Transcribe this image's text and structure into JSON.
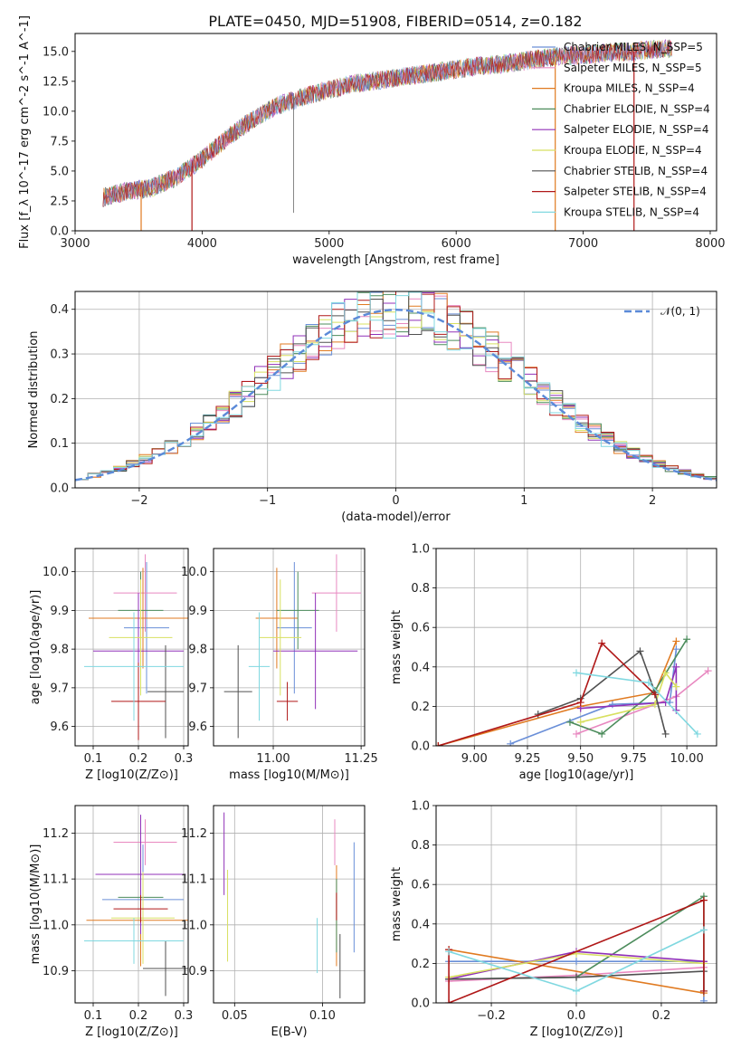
{
  "title": "PLATE=0450, MJD=51908, FIBERID=0514, z=0.182",
  "colors": [
    "#6a8fd8",
    "#e888c0",
    "#e07a20",
    "#4c8c5c",
    "#9030b8",
    "#d8e060",
    "#505050",
    "#b01818",
    "#80d8e0"
  ],
  "chart_data": [
    {
      "id": "spectrum",
      "type": "line",
      "xlabel": "wavelength [Angstrom, rest frame]",
      "ylabel": "Flux [f_λ 10^-17 erg cm^-2 s^-1 A^-1]",
      "xlim": [
        3000,
        8050
      ],
      "ylim": [
        0,
        16.5
      ],
      "xticks": [
        3000,
        4000,
        5000,
        6000,
        7000,
        8000
      ],
      "yticks": [
        0.0,
        2.5,
        5.0,
        7.5,
        10.0,
        12.5,
        15.0
      ],
      "grid": false,
      "legend": "top-right",
      "continuum": {
        "x": [
          3220,
          3400,
          3600,
          3800,
          4000,
          4200,
          4400,
          4600,
          4800,
          5000,
          5200,
          5400,
          5600,
          5800,
          6000,
          6200,
          6400,
          6600,
          6800,
          7000,
          7200,
          7400,
          7600,
          7700
        ],
        "y": [
          2.8,
          3.3,
          3.6,
          4.5,
          6.0,
          7.8,
          9.3,
          10.5,
          11.2,
          11.8,
          12.3,
          12.6,
          12.9,
          13.2,
          13.5,
          13.8,
          14.0,
          14.3,
          14.6,
          14.7,
          14.9,
          15.0,
          15.2,
          15.2
        ]
      },
      "series": [
        {
          "name": "Chabrier MILES, N_SSP=5"
        },
        {
          "name": "Salpeter MILES, N_SSP=5"
        },
        {
          "name": "Kroupa MILES, N_SSP=4"
        },
        {
          "name": "Chabrier ELODIE, N_SSP=4"
        },
        {
          "name": "Salpeter ELODIE, N_SSP=4"
        },
        {
          "name": "Kroupa ELODIE, N_SSP=4"
        },
        {
          "name": "Chabrier STELIB, N_SSP=4"
        },
        {
          "name": "Salpeter STELIB, N_SSP=4"
        },
        {
          "name": "Kroupa STELIB, N_SSP=4"
        }
      ]
    },
    {
      "id": "residuals",
      "type": "line",
      "xlabel": "(data-model)/error",
      "ylabel": "Normed distribution",
      "xlim": [
        -2.5,
        2.5
      ],
      "ylim": [
        0,
        0.44
      ],
      "xticks": [
        -2,
        -1,
        0,
        1,
        2
      ],
      "yticks": [
        0.0,
        0.1,
        0.2,
        0.3,
        0.4
      ],
      "grid": true,
      "legend": "top-right",
      "legend_label": "𝒩(0, 1)"
    },
    {
      "id": "age_vs_Z",
      "type": "scatter",
      "xlabel": "Z [log10(Z/Z⊙)]",
      "ylabel": "age  [log10(age/yr)]",
      "xlim": [
        0.06,
        0.31
      ],
      "ylim": [
        9.55,
        10.06
      ],
      "xticks": [
        0.1,
        0.2,
        0.3
      ],
      "yticks": [
        9.6,
        9.7,
        9.8,
        9.9,
        10.0
      ],
      "points": [
        {
          "x": 0.218,
          "y": 9.855,
          "xerr": 0.05,
          "yerr": 0.17
        },
        {
          "x": 0.215,
          "y": 9.945,
          "xerr": 0.07,
          "yerr": 0.1
        },
        {
          "x": 0.21,
          "y": 9.88,
          "xerr": 0.12,
          "yerr": 0.13
        },
        {
          "x": 0.205,
          "y": 9.9,
          "xerr": 0.05,
          "yerr": 0.1
        },
        {
          "x": 0.2,
          "y": 9.795,
          "xerr": 0.1,
          "yerr": 0.15
        },
        {
          "x": 0.205,
          "y": 9.83,
          "xerr": 0.07,
          "yerr": 0.15
        },
        {
          "x": 0.26,
          "y": 9.69,
          "xerr": 0.04,
          "yerr": 0.12
        },
        {
          "x": 0.2,
          "y": 9.665,
          "xerr": 0.06,
          "yerr": 0.1
        },
        {
          "x": 0.19,
          "y": 9.755,
          "xerr": 0.11,
          "yerr": 0.14
        }
      ]
    },
    {
      "id": "age_vs_mass",
      "type": "scatter",
      "xlabel": "mass [log10(M/M⊙)]",
      "ylabel": "",
      "xlim": [
        10.83,
        11.26
      ],
      "ylim": [
        9.55,
        10.06
      ],
      "xticks": [
        11.0,
        11.25
      ],
      "yticks": [
        9.6,
        9.7,
        9.8,
        9.9,
        10.0
      ],
      "points": [
        {
          "x": 11.06,
          "y": 9.855,
          "xerr": 0.05,
          "yerr": 0.17
        },
        {
          "x": 11.18,
          "y": 9.945,
          "xerr": 0.07,
          "yerr": 0.1
        },
        {
          "x": 11.01,
          "y": 9.88,
          "xerr": 0.06,
          "yerr": 0.13
        },
        {
          "x": 11.07,
          "y": 9.9,
          "xerr": 0.06,
          "yerr": 0.1
        },
        {
          "x": 11.12,
          "y": 9.795,
          "xerr": 0.12,
          "yerr": 0.15
        },
        {
          "x": 11.02,
          "y": 9.83,
          "xerr": 0.06,
          "yerr": 0.15
        },
        {
          "x": 10.9,
          "y": 9.69,
          "xerr": 0.04,
          "yerr": 0.12
        },
        {
          "x": 11.04,
          "y": 9.665,
          "xerr": 0.03,
          "yerr": 0.05
        },
        {
          "x": 10.96,
          "y": 9.755,
          "xerr": 0.03,
          "yerr": 0.14
        }
      ]
    },
    {
      "id": "weights_vs_age",
      "type": "line",
      "xlabel": "age  [log10(age/yr)]",
      "ylabel": "mass weight",
      "xlim": [
        8.82,
        10.14
      ],
      "ylim": [
        0,
        1
      ],
      "xticks": [
        9.0,
        9.25,
        9.5,
        9.75,
        10.0
      ],
      "yticks": [
        0.0,
        0.2,
        0.4,
        0.6,
        0.8,
        1.0
      ],
      "series": [
        {
          "x": [
            9.17,
            9.65,
            9.92,
            9.95
          ],
          "y": [
            0.01,
            0.21,
            0.22,
            0.49
          ]
        },
        {
          "x": [
            9.48,
            9.95,
            10.1
          ],
          "y": [
            0.06,
            0.25,
            0.38
          ]
        },
        {
          "x": [
            8.83,
            9.5,
            9.85,
            9.95
          ],
          "y": [
            0.0,
            0.2,
            0.27,
            0.53
          ]
        },
        {
          "x": [
            9.45,
            9.6,
            9.85,
            10.0
          ],
          "y": [
            0.12,
            0.06,
            0.28,
            0.54
          ]
        },
        {
          "x": [
            9.5,
            9.9,
            9.95,
            9.95
          ],
          "y": [
            0.19,
            0.22,
            0.4,
            0.18
          ]
        },
        {
          "x": [
            9.5,
            9.85,
            9.9,
            9.95
          ],
          "y": [
            0.12,
            0.21,
            0.37,
            0.3
          ]
        },
        {
          "x": [
            9.3,
            9.5,
            9.78,
            9.85,
            9.9
          ],
          "y": [
            0.16,
            0.24,
            0.48,
            0.27,
            0.06
          ]
        },
        {
          "x": [
            8.83,
            9.5,
            9.6,
            9.85
          ],
          "y": [
            0.0,
            0.22,
            0.52,
            0.26
          ]
        },
        {
          "x": [
            9.48,
            9.82,
            10.05
          ],
          "y": [
            0.37,
            0.32,
            0.06
          ]
        }
      ]
    },
    {
      "id": "mass_vs_Z",
      "type": "scatter",
      "xlabel": "Z [log10(Z/Z⊙)]",
      "ylabel": "mass [log10(M/M⊙)]",
      "xlim": [
        0.06,
        0.31
      ],
      "ylim": [
        10.83,
        11.26
      ],
      "xticks": [
        0.1,
        0.2,
        0.3
      ],
      "yticks": [
        10.9,
        11.0,
        11.1,
        11.2
      ],
      "points": [
        {
          "x": 0.21,
          "y": 11.055,
          "xerr": 0.09,
          "yerr": 0.12
        },
        {
          "x": 0.215,
          "y": 11.18,
          "xerr": 0.07,
          "yerr": 0.05
        },
        {
          "x": 0.205,
          "y": 11.01,
          "xerr": 0.12,
          "yerr": 0.1
        },
        {
          "x": 0.205,
          "y": 11.06,
          "xerr": 0.05,
          "yerr": 0.08
        },
        {
          "x": 0.205,
          "y": 11.11,
          "xerr": 0.1,
          "yerr": 0.13
        },
        {
          "x": 0.21,
          "y": 11.015,
          "xerr": 0.07,
          "yerr": 0.1
        },
        {
          "x": 0.26,
          "y": 10.905,
          "xerr": 0.05,
          "yerr": 0.06
        },
        {
          "x": 0.205,
          "y": 11.035,
          "xerr": 0.06,
          "yerr": 0.03
        },
        {
          "x": 0.19,
          "y": 10.965,
          "xerr": 0.11,
          "yerr": 0.05
        }
      ]
    },
    {
      "id": "mass_vs_EBV",
      "type": "scatter",
      "xlabel": "E(B-V)",
      "ylabel": "",
      "xlim": [
        0.038,
        0.124
      ],
      "ylim": [
        10.83,
        11.26
      ],
      "xticks": [
        0.05,
        0.1
      ],
      "yticks": [
        10.9,
        11.0,
        11.1,
        11.2
      ],
      "points": [
        {
          "x": 0.118,
          "y": 11.06,
          "yerr": 0.12
        },
        {
          "x": 0.107,
          "y": 11.18,
          "yerr": 0.05
        },
        {
          "x": 0.108,
          "y": 11.02,
          "yerr": 0.11
        },
        {
          "x": 0.108,
          "y": 11.02,
          "yerr": 0.08
        },
        {
          "x": 0.044,
          "y": 11.155,
          "yerr": 0.09
        },
        {
          "x": 0.046,
          "y": 11.02,
          "yerr": 0.1
        },
        {
          "x": 0.11,
          "y": 10.91,
          "yerr": 0.07
        },
        {
          "x": 0.108,
          "y": 11.04,
          "yerr": 0.03
        },
        {
          "x": 0.097,
          "y": 10.955,
          "yerr": 0.06
        }
      ]
    },
    {
      "id": "weights_vs_Z",
      "type": "line",
      "xlabel": "Z [log10(Z/Z⊙)]",
      "ylabel": "mass weight",
      "xlim": [
        -0.33,
        0.33
      ],
      "ylim": [
        0,
        1
      ],
      "xticks": [
        -0.2,
        0.0,
        0.2
      ],
      "yticks": [
        0.0,
        0.2,
        0.4,
        0.6,
        0.8,
        1.0
      ],
      "series": [
        {
          "x": [
            -0.3,
            0.0,
            0.3,
            0.3
          ],
          "y": [
            0.21,
            0.21,
            0.21,
            0.01
          ]
        },
        {
          "x": [
            -0.3,
            0.0,
            0.3
          ],
          "y": [
            0.11,
            0.14,
            0.18
          ]
        },
        {
          "x": [
            -0.3,
            0.3
          ],
          "y": [
            0.27,
            0.05
          ]
        },
        {
          "x": [
            -0.3,
            0.0,
            0.3,
            0.3
          ],
          "y": [
            0.12,
            0.13,
            0.54,
            0.06
          ]
        },
        {
          "x": [
            -0.3,
            0.0,
            0.3
          ],
          "y": [
            0.12,
            0.26,
            0.21
          ]
        },
        {
          "x": [
            -0.3,
            0.0,
            0.3
          ],
          "y": [
            0.13,
            0.25,
            0.2
          ]
        },
        {
          "x": [
            -0.3,
            0.0,
            0.3
          ],
          "y": [
            0.12,
            0.13,
            0.16
          ]
        },
        {
          "x": [
            -0.3,
            -0.3,
            0.3,
            0.3
          ],
          "y": [
            0.27,
            0.0,
            0.52,
            0.06
          ]
        },
        {
          "x": [
            -0.3,
            0.0,
            0.3
          ],
          "y": [
            0.26,
            0.06,
            0.37
          ]
        }
      ]
    }
  ]
}
